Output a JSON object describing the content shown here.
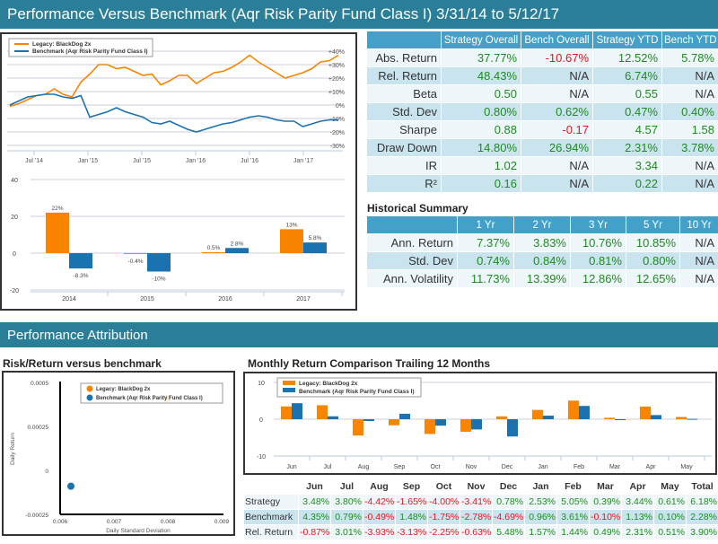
{
  "header": {
    "title": "Performance Versus Benchmark (Aqr Risk Parity Fund Class I) 3/31/14 to 5/12/17"
  },
  "colors": {
    "strategy": "#f98400",
    "benchmark": "#1a72b0",
    "header": "#2a7e98",
    "table_header": "#42a0c9",
    "positive": "#1f8a1f",
    "negative": "#e6141e"
  },
  "legend": {
    "strategy": "Legacy: BlackDog 2x",
    "benchmark": "Benchmark (Aqr Risk Parity Fund Class I)"
  },
  "stats_table": {
    "columns": [
      "",
      "Strategy Overall",
      "Bench Overall",
      "Strategy YTD",
      "Bench YTD"
    ],
    "rows": [
      {
        "label": "Abs. Return",
        "values": [
          "37.77%",
          "-10.67%",
          "12.52%",
          "5.78%"
        ]
      },
      {
        "label": "Rel. Return",
        "values": [
          "48.43%",
          "N/A",
          "6.74%",
          "N/A"
        ]
      },
      {
        "label": "Beta",
        "values": [
          "0.50",
          "N/A",
          "0.55",
          "N/A"
        ]
      },
      {
        "label": "Std. Dev",
        "values": [
          "0.80%",
          "0.62%",
          "0.47%",
          "0.40%"
        ]
      },
      {
        "label": "Sharpe",
        "values": [
          "0.88",
          "-0.17",
          "4.57",
          "1.58"
        ]
      },
      {
        "label": "Draw Down",
        "values": [
          "14.80%",
          "26.94%",
          "2.31%",
          "3.78%"
        ]
      },
      {
        "label": "IR",
        "values": [
          "1.02",
          "N/A",
          "3.34",
          "N/A"
        ]
      },
      {
        "label": "R²",
        "values": [
          "0.16",
          "N/A",
          "0.22",
          "N/A"
        ]
      }
    ]
  },
  "historical": {
    "title": "Historical Summary",
    "columns": [
      "",
      "1 Yr",
      "2 Yr",
      "3 Yr",
      "5 Yr",
      "10 Yr"
    ],
    "rows": [
      {
        "label": "Ann. Return",
        "values": [
          "7.37%",
          "3.83%",
          "10.76%",
          "10.85%",
          "N/A"
        ]
      },
      {
        "label": "Std. Dev",
        "values": [
          "0.74%",
          "0.84%",
          "0.81%",
          "0.80%",
          "N/A"
        ]
      },
      {
        "label": "Ann. Volatility",
        "values": [
          "11.73%",
          "13.39%",
          "12.86%",
          "12.65%",
          "N/A"
        ]
      }
    ]
  },
  "attribution": {
    "title": "Performance Attribution",
    "risk_title": "Risk/Return versus benchmark",
    "monthly_title": "Monthly Return Comparison Trailing 12 Months"
  },
  "monthly_table": {
    "columns": [
      "",
      "Jun",
      "Jul",
      "Aug",
      "Sep",
      "Oct",
      "Nov",
      "Dec",
      "Jan",
      "Feb",
      "Mar",
      "Apr",
      "May",
      "Total"
    ],
    "rows": [
      {
        "label": "Strategy",
        "values": [
          "3.48%",
          "3.80%",
          "-4.42%",
          "-1.65%",
          "-4.00%",
          "-3.41%",
          "0.78%",
          "2.53%",
          "5.05%",
          "0.39%",
          "3.44%",
          "0.61%",
          "6.18%"
        ]
      },
      {
        "label": "Benchmark",
        "values": [
          "4.35%",
          "0.79%",
          "-0.49%",
          "1.48%",
          "-1.75%",
          "-2.78%",
          "-4.69%",
          "0.96%",
          "3.61%",
          "-0.10%",
          "1.13%",
          "0.10%",
          "2.28%"
        ]
      },
      {
        "label": "Rel. Return",
        "values": [
          "-0.87%",
          "3.01%",
          "-3.93%",
          "-3.13%",
          "-2.25%",
          "-0.63%",
          "5.48%",
          "1.57%",
          "1.44%",
          "0.49%",
          "2.31%",
          "0.51%",
          "3.90%"
        ]
      }
    ]
  },
  "chart_data": [
    {
      "type": "line",
      "x_ticks": [
        "Jul '14",
        "Jan '15",
        "Jul '15",
        "Jan '16",
        "Jul '16",
        "Jan '17"
      ],
      "y_ticks": [
        "+40%",
        "+30%",
        "+20%",
        "+10%",
        "0%",
        "-10%",
        "-20%",
        "-30%"
      ],
      "ylim": [
        -30,
        40
      ],
      "grid": true,
      "legend": "top-left",
      "x": [
        "2014-04",
        "2014-05",
        "2014-06",
        "2014-07",
        "2014-08",
        "2014-09",
        "2014-10",
        "2014-11",
        "2014-12",
        "2015-01",
        "2015-02",
        "2015-03",
        "2015-04",
        "2015-05",
        "2015-06",
        "2015-07",
        "2015-08",
        "2015-09",
        "2015-10",
        "2015-11",
        "2015-12",
        "2016-01",
        "2016-02",
        "2016-03",
        "2016-04",
        "2016-05",
        "2016-06",
        "2016-07",
        "2016-08",
        "2016-09",
        "2016-10",
        "2016-11",
        "2016-12",
        "2017-01",
        "2017-02",
        "2017-03",
        "2017-04",
        "2017-05"
      ],
      "series": [
        {
          "name": "Legacy: BlackDog 2x",
          "values": [
            -1,
            1,
            4,
            7,
            8,
            12,
            8,
            6,
            17,
            23,
            30,
            30,
            27,
            28,
            25,
            22,
            23,
            15,
            18,
            22,
            22,
            16,
            20,
            24,
            25,
            28,
            32,
            37,
            32,
            28,
            24,
            20,
            22,
            24,
            27,
            32,
            33,
            37
          ]
        },
        {
          "name": "Benchmark (Aqr Risk Parity Fund Class I)",
          "values": [
            0,
            3,
            6,
            7,
            8,
            8,
            6,
            5,
            7,
            -9,
            -7,
            -5,
            -2,
            -5,
            -7,
            -9,
            -13,
            -14,
            -12,
            -15,
            -18,
            -20,
            -18,
            -16,
            -14,
            -13,
            -11,
            -9,
            -8,
            -9,
            -11,
            -12,
            -12,
            -16,
            -14,
            -12,
            -11,
            -11
          ]
        }
      ]
    },
    {
      "type": "bar",
      "categories": [
        "2014",
        "2015",
        "2016",
        "2017"
      ],
      "y_ticks": [
        "40",
        "20",
        "0",
        "-20"
      ],
      "ylim": [
        -20,
        40
      ],
      "grid": true,
      "series": [
        {
          "values": [
            22,
            -0.4,
            0.5,
            13
          ],
          "labels": [
            "22%",
            "-0.4%",
            "0.5%",
            "13%"
          ]
        },
        {
          "values": [
            -8.3,
            -10,
            2.8,
            5.8
          ],
          "labels": [
            "-8.3%",
            "-10%",
            "2.8%",
            "5.8%"
          ]
        }
      ]
    },
    {
      "type": "scatter",
      "xlabel": "Daily Standard Deviation",
      "ylabel": "Daily Return",
      "x_ticks": [
        "0.006",
        "0.007",
        "0.008",
        "0.009"
      ],
      "y_ticks": [
        "0.0005",
        "0.00025",
        "0",
        "-0.00025"
      ],
      "xlim": [
        0.006,
        0.009
      ],
      "ylim": [
        -0.00025,
        0.0005
      ],
      "legend": "top-right",
      "series": [
        {
          "name": "Legacy: BlackDog 2x",
          "x": 0.008,
          "y": 0.00041
        },
        {
          "name": "Benchmark (Aqr Risk Parity Fund Class I)",
          "x": 0.0062,
          "y": -9e-05
        }
      ]
    },
    {
      "type": "bar",
      "categories": [
        "Jun",
        "Jul",
        "Aug",
        "Sep",
        "Oct",
        "Nov",
        "Dec",
        "Jan",
        "Feb",
        "Mar",
        "Apr",
        "May"
      ],
      "y_ticks": [
        "10",
        "0",
        "-10"
      ],
      "ylim": [
        -10,
        10
      ],
      "grid": true,
      "legend": "top-left",
      "series": [
        {
          "name": "Legacy: BlackDog 2x",
          "values": [
            3.48,
            3.8,
            -4.42,
            -1.65,
            -4.0,
            -3.41,
            0.78,
            2.53,
            5.05,
            0.39,
            3.44,
            0.61
          ]
        },
        {
          "name": "Benchmark (Aqr Risk Parity Fund Class I)",
          "values": [
            4.35,
            0.79,
            -0.49,
            1.48,
            -1.75,
            -2.78,
            -4.69,
            0.96,
            3.61,
            -0.1,
            1.13,
            0.1
          ]
        }
      ]
    }
  ]
}
